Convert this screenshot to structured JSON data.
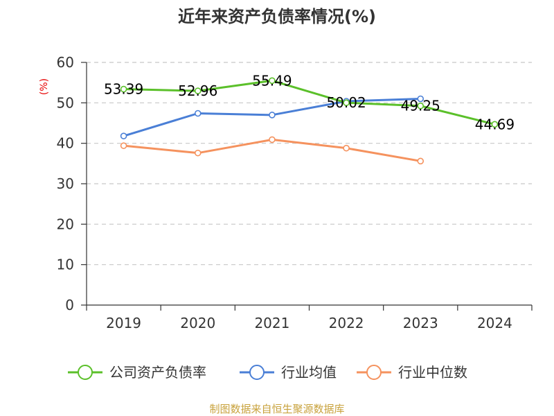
{
  "chart_data": {
    "type": "line",
    "title": "近年来资产负债率情况(%)",
    "ylabel": "(%)",
    "xlabel": "",
    "categories": [
      "2019",
      "2020",
      "2021",
      "2022",
      "2023",
      "2024"
    ],
    "ylim": [
      0,
      60
    ],
    "yticks": [
      0,
      10,
      20,
      30,
      40,
      50,
      60
    ],
    "grid": true,
    "legend_position": "bottom",
    "series": [
      {
        "name": "公司资产负债率",
        "color": "#5bc02a",
        "values": [
          53.39,
          52.96,
          55.49,
          50.02,
          49.25,
          44.69
        ],
        "labels": [
          "53.39",
          "52.96",
          "55.49",
          "50.02",
          "49.25",
          "44.69"
        ]
      },
      {
        "name": "行业均值",
        "color": "#4a7fd6",
        "values": [
          41.8,
          47.4,
          47.0,
          50.4,
          51.0,
          null
        ]
      },
      {
        "name": "行业中位数",
        "color": "#f5925e",
        "values": [
          39.4,
          37.6,
          40.9,
          38.8,
          35.6,
          null
        ]
      }
    ],
    "source": "制图数据来自恒生聚源数据库"
  }
}
